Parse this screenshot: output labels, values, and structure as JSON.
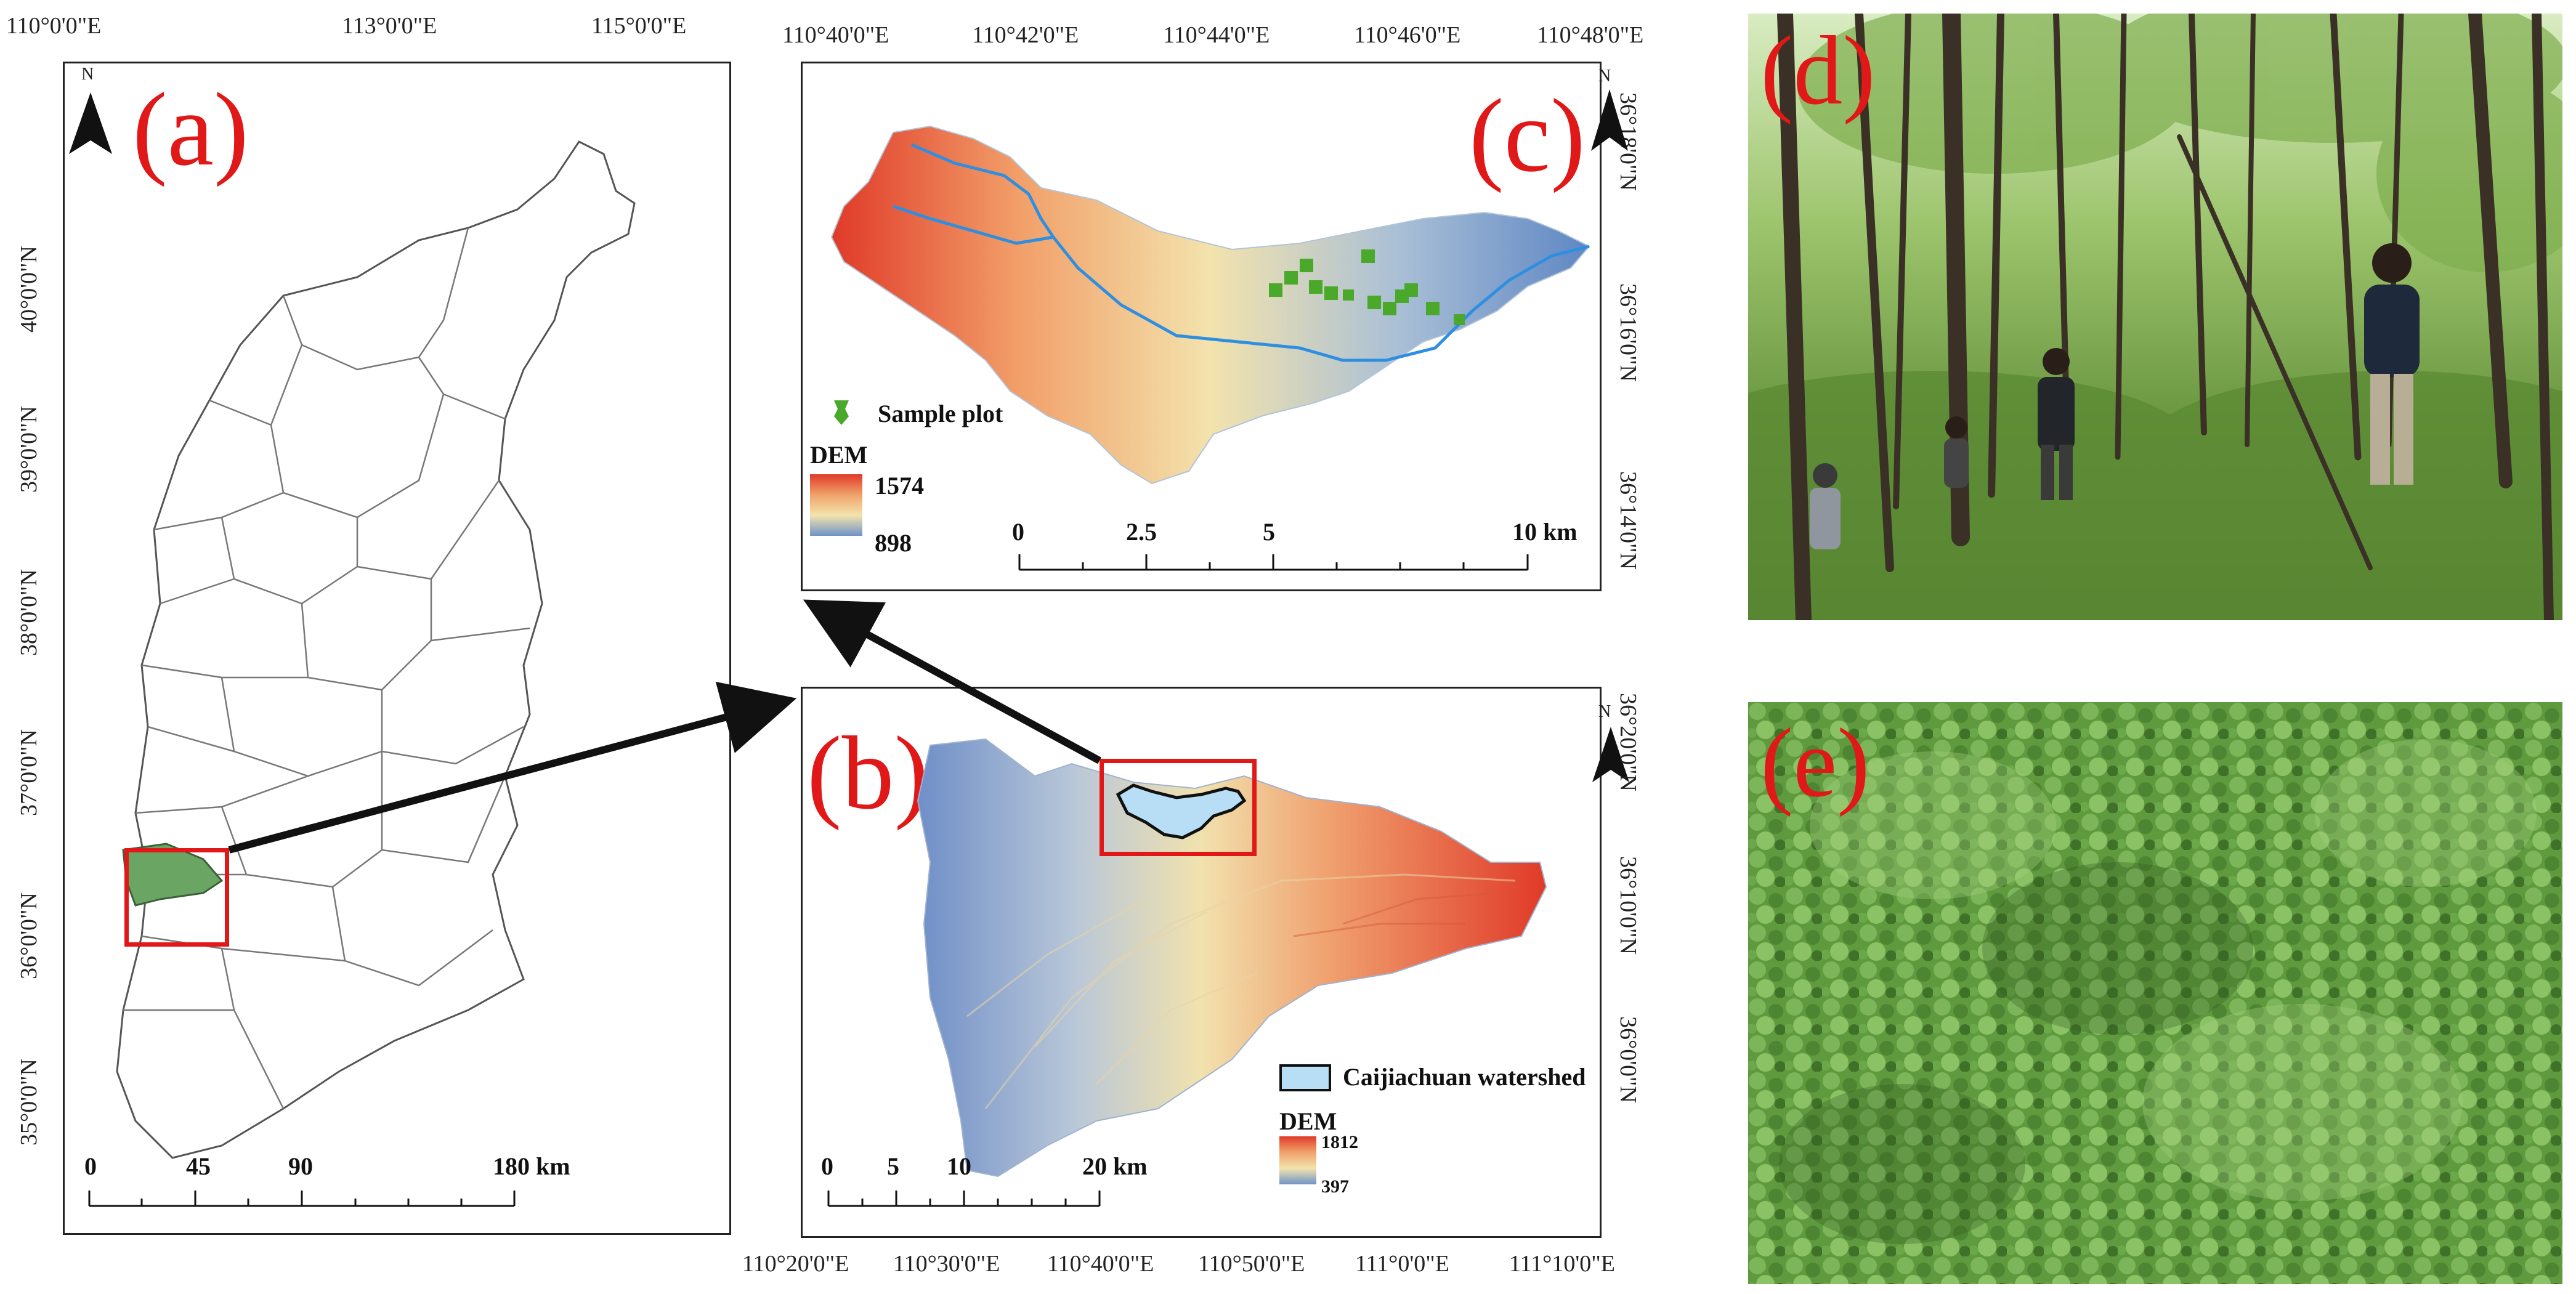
{
  "panel_a": {
    "letter": "(a)",
    "north": "N",
    "top_coords": [
      "110°0'0\"E",
      "113°0'0\"E",
      "115°0'0\"E"
    ],
    "left_coords": [
      "40°0'0\"N",
      "39°0'0\"N",
      "38°0'0\"N",
      "37°0'0\"N",
      "36°0'0\"N",
      "35°0'0\"N"
    ],
    "scale": [
      "0",
      "45",
      "90",
      "180 km"
    ],
    "colors": {
      "highlight": "#e01818",
      "study_area": "#6aa564"
    }
  },
  "panel_b": {
    "letter": "(b)",
    "north": "N",
    "bottom_coords": [
      "110°20'0\"E",
      "110°30'0\"E",
      "110°40'0\"E",
      "110°50'0\"E",
      "111°0'0\"E",
      "111°10'0\"E"
    ],
    "right_coords": [
      "36°20'0\"N",
      "36°10'0\"N",
      "36°0'0\"N"
    ],
    "legend_watershed": "Caijiachuan watershed",
    "legend_dem": "DEM",
    "dem_max": "1812",
    "dem_min": "397",
    "scale": [
      "0",
      "5",
      "10",
      "20 km"
    ],
    "colors": {
      "watershed_fill": "#b8def5"
    }
  },
  "panel_c": {
    "letter": "(c)",
    "north": "N",
    "top_coords": [
      "110°40'0\"E",
      "110°42'0\"E",
      "110°44'0\"E",
      "110°46'0\"E",
      "110°48'0\"E"
    ],
    "right_coords": [
      "36°18'0\"N",
      "36°16'0\"N",
      "36°14'0\"N"
    ],
    "legend_plot": "Sample plot",
    "legend_dem": "DEM",
    "dem_max": "1574",
    "dem_min": "898",
    "scale": [
      "0",
      "2.5",
      "5",
      "10 km"
    ],
    "colors": {
      "river": "#2e8fe0",
      "plots": "#4aa82a"
    }
  },
  "panel_d": {
    "letter": "(d)"
  },
  "panel_e": {
    "letter": "(e)"
  }
}
